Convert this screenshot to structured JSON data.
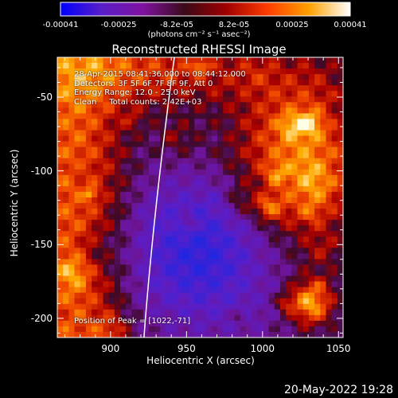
{
  "colorbar": {
    "ticks": [
      "-0.00041",
      "-0.00025",
      "-8.2e-05",
      "8.2e-05",
      "0.00025",
      "0.00041"
    ],
    "units": "(photons cm⁻² s⁻¹ asec⁻²)",
    "colors": [
      "#0000ff",
      "#5a1ec8",
      "#7f12a0",
      "#3a0a18",
      "#a00000",
      "#ff3c00",
      "#ffa000",
      "#ffffff"
    ]
  },
  "chart_data": {
    "type": "heatmap",
    "title": "Reconstructed RHESSI Image",
    "xlabel": "Heliocentric X (arcsec)",
    "ylabel": "Heliocentric Y (arcsec)",
    "xlim": [
      865,
      1053
    ],
    "ylim": [
      -213,
      -23
    ],
    "xticks": [
      900,
      950,
      1000,
      1050
    ],
    "yticks": [
      -50,
      -100,
      -150,
      -200
    ],
    "limb_curve": [
      [
        942,
        -23
      ],
      [
        930,
        -130
      ],
      [
        922,
        -213
      ]
    ],
    "annotations": {
      "line1": "28-Apr-2015 08:41:36.000 to 08:44:12.000",
      "line2": "Detectors: 3F 5F 6F 7F 8F 9F, Att 0",
      "line3": "Energy Range: 12.0 - 25.0 keV",
      "line4": "Clean     Total counts: 2.42E+03",
      "peak": "Position of Peak = [1022,-71]"
    }
  },
  "footer": {
    "date": "20-May-2022 19:28"
  }
}
